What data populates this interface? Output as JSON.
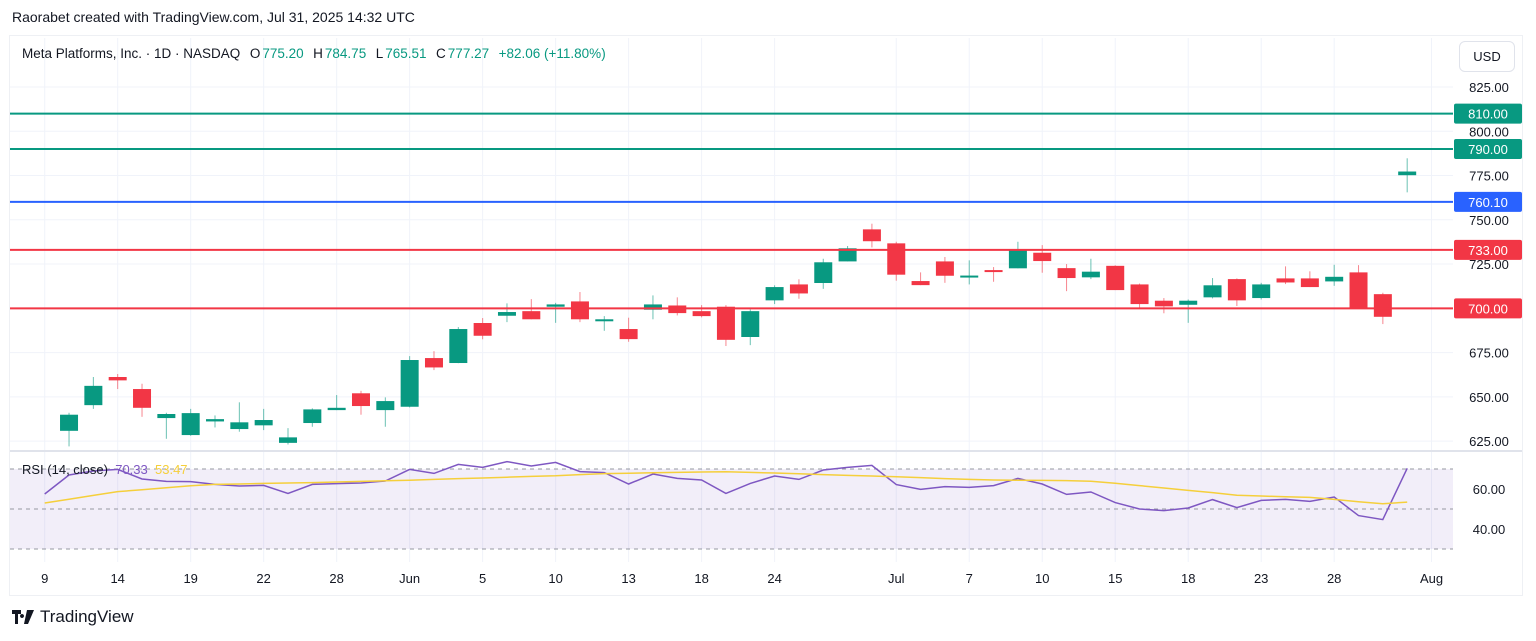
{
  "credit": "Raorabet created with TradingView.com, Jul 31, 2025 14:32 UTC",
  "legend": {
    "symbol": "Meta Platforms, Inc. · 1D · NASDAQ",
    "open_label": "O",
    "open": "775.20",
    "high_label": "H",
    "high": "784.75",
    "low_label": "L",
    "low": "765.51",
    "close_label": "C",
    "close": "777.27",
    "change": "+82.06 (+11.80%)"
  },
  "currency": "USD",
  "rsi_legend": {
    "name": "RSI (14, close)",
    "rsi": "70.33",
    "ma": "53.47"
  },
  "footer_brand": "TradingView",
  "colors": {
    "up": "#089981",
    "down": "#f23645",
    "support_resistance_green": "#089981",
    "blue_level": "#2962ff",
    "red_level": "#f23645",
    "rsi": "#7e57c2",
    "rsi_ma": "#f5cf3b",
    "rsi_band": "#7e57c2"
  },
  "chart_data": [
    {
      "type": "candlestick",
      "ylim": [
        619.4,
        852.7
      ],
      "grid": true,
      "price_ticks": [
        "625.00",
        "650.00",
        "675.00",
        "725.00",
        "750.00",
        "775.00",
        "800.00",
        "825.00"
      ],
      "levels": [
        {
          "value": 810.0,
          "label": "810.00",
          "color": "#089981"
        },
        {
          "value": 790.0,
          "label": "790.00",
          "color": "#089981"
        },
        {
          "value": 760.1,
          "label": "760.10",
          "color": "#2962ff"
        },
        {
          "value": 733.0,
          "label": "733.00",
          "color": "#f23645"
        },
        {
          "value": 700.0,
          "label": "700.00",
          "color": "#f23645"
        }
      ],
      "dates": [
        "2025-05-09",
        "2025-05-12",
        "2025-05-13",
        "2025-05-14",
        "2025-05-15",
        "2025-05-16",
        "2025-05-19",
        "2025-05-20",
        "2025-05-21",
        "2025-05-22",
        "2025-05-23",
        "2025-05-27",
        "2025-05-28",
        "2025-05-29",
        "2025-05-30",
        "2025-06-02",
        "2025-06-03",
        "2025-06-04",
        "2025-06-05",
        "2025-06-06",
        "2025-06-09",
        "2025-06-10",
        "2025-06-11",
        "2025-06-12",
        "2025-06-13",
        "2025-06-16",
        "2025-06-17",
        "2025-06-18",
        "2025-06-20",
        "2025-06-23",
        "2025-06-24",
        "2025-06-25",
        "2025-06-26",
        "2025-06-27",
        "2025-06-30",
        "2025-07-01",
        "2025-07-02",
        "2025-07-03",
        "2025-07-07",
        "2025-07-08",
        "2025-07-09",
        "2025-07-10",
        "2025-07-11",
        "2025-07-14",
        "2025-07-15",
        "2025-07-16",
        "2025-07-17",
        "2025-07-18",
        "2025-07-21",
        "2025-07-22",
        "2025-07-23",
        "2025-07-24",
        "2025-07-25",
        "2025-07-28",
        "2025-07-29",
        "2025-07-30",
        "2025-07-31"
      ],
      "candles": [
        {
          "date": "2025-05-12",
          "o": 630.8,
          "h": 641.0,
          "l": 622.0,
          "c": 639.9
        },
        {
          "date": "2025-05-13",
          "o": 645.3,
          "h": 661.2,
          "l": 643.2,
          "c": 656.2
        },
        {
          "date": "2025-05-14",
          "o": 661.2,
          "h": 662.9,
          "l": 654.4,
          "c": 659.3
        },
        {
          "date": "2025-05-15",
          "o": 654.4,
          "h": 657.4,
          "l": 638.7,
          "c": 643.8
        },
        {
          "date": "2025-05-16",
          "o": 638.0,
          "h": 641.0,
          "l": 626.3,
          "c": 640.3
        },
        {
          "date": "2025-05-19",
          "o": 628.4,
          "h": 643.2,
          "l": 628.0,
          "c": 640.8
        },
        {
          "date": "2025-05-20",
          "o": 636.1,
          "h": 639.5,
          "l": 632.7,
          "c": 637.4
        },
        {
          "date": "2025-05-21",
          "o": 631.8,
          "h": 646.9,
          "l": 630.3,
          "c": 635.6
        },
        {
          "date": "2025-05-22",
          "o": 633.9,
          "h": 643.2,
          "l": 631.2,
          "c": 636.9
        },
        {
          "date": "2025-05-23",
          "o": 624.0,
          "h": 632.3,
          "l": 623.1,
          "c": 627.1
        },
        {
          "date": "2025-05-27",
          "o": 635.2,
          "h": 643.5,
          "l": 633.1,
          "c": 642.9
        },
        {
          "date": "2025-05-28",
          "o": 642.5,
          "h": 651.0,
          "l": 642.5,
          "c": 643.8
        },
        {
          "date": "2025-05-29",
          "o": 652.0,
          "h": 653.4,
          "l": 639.9,
          "c": 644.8
        },
        {
          "date": "2025-05-30",
          "o": 642.5,
          "h": 649.7,
          "l": 633.1,
          "c": 647.6
        },
        {
          "date": "2025-06-02",
          "o": 644.4,
          "h": 673.0,
          "l": 644.0,
          "c": 670.8
        },
        {
          "date": "2025-06-03",
          "o": 671.9,
          "h": 675.8,
          "l": 665.1,
          "c": 666.6
        },
        {
          "date": "2025-06-04",
          "o": 669.1,
          "h": 689.4,
          "l": 669.0,
          "c": 688.3
        },
        {
          "date": "2025-06-05",
          "o": 691.7,
          "h": 694.5,
          "l": 682.5,
          "c": 684.5
        },
        {
          "date": "2025-06-06",
          "o": 695.8,
          "h": 702.8,
          "l": 692.2,
          "c": 697.9
        },
        {
          "date": "2025-06-09",
          "o": 698.4,
          "h": 705.2,
          "l": 693.8,
          "c": 693.8
        },
        {
          "date": "2025-06-10",
          "o": 700.9,
          "h": 703.1,
          "l": 691.8,
          "c": 702.2
        },
        {
          "date": "2025-06-11",
          "o": 703.9,
          "h": 709.2,
          "l": 692.2,
          "c": 693.8
        },
        {
          "date": "2025-06-12",
          "o": 693.2,
          "h": 695.6,
          "l": 687.3,
          "c": 693.8
        },
        {
          "date": "2025-06-13",
          "o": 688.3,
          "h": 694.7,
          "l": 681.1,
          "c": 682.6
        },
        {
          "date": "2025-06-16",
          "o": 699.2,
          "h": 707.3,
          "l": 693.8,
          "c": 702.2
        },
        {
          "date": "2025-06-17",
          "o": 701.6,
          "h": 706.2,
          "l": 696.0,
          "c": 697.3
        },
        {
          "date": "2025-06-18",
          "o": 698.4,
          "h": 701.8,
          "l": 694.9,
          "c": 695.6
        },
        {
          "date": "2025-06-20",
          "o": 700.9,
          "h": 701.8,
          "l": 678.7,
          "c": 682.2
        },
        {
          "date": "2025-06-23",
          "o": 683.8,
          "h": 699.4,
          "l": 679.2,
          "c": 698.4
        },
        {
          "date": "2025-06-24",
          "o": 704.5,
          "h": 713.0,
          "l": 702.4,
          "c": 712.0
        },
        {
          "date": "2025-06-25",
          "o": 713.5,
          "h": 716.4,
          "l": 705.4,
          "c": 708.4
        },
        {
          "date": "2025-06-26",
          "o": 714.3,
          "h": 728.0,
          "l": 711.0,
          "c": 726.0
        },
        {
          "date": "2025-06-27",
          "o": 726.5,
          "h": 735.2,
          "l": 726.5,
          "c": 733.9
        },
        {
          "date": "2025-06-30",
          "o": 744.6,
          "h": 747.8,
          "l": 734.4,
          "c": 737.9
        },
        {
          "date": "2025-07-01",
          "o": 736.7,
          "h": 737.6,
          "l": 715.6,
          "c": 719.0
        },
        {
          "date": "2025-07-02",
          "o": 715.4,
          "h": 720.3,
          "l": 713.1,
          "c": 713.1
        },
        {
          "date": "2025-07-03",
          "o": 726.5,
          "h": 729.0,
          "l": 714.4,
          "c": 718.4
        },
        {
          "date": "2025-07-07",
          "o": 717.9,
          "h": 727.1,
          "l": 713.5,
          "c": 718.5
        },
        {
          "date": "2025-07-08",
          "o": 721.6,
          "h": 723.3,
          "l": 715.0,
          "c": 720.5
        },
        {
          "date": "2025-07-09",
          "o": 722.6,
          "h": 737.6,
          "l": 722.6,
          "c": 732.9
        },
        {
          "date": "2025-07-10",
          "o": 731.4,
          "h": 735.7,
          "l": 720.1,
          "c": 726.7
        },
        {
          "date": "2025-07-11",
          "o": 722.7,
          "h": 725.0,
          "l": 709.7,
          "c": 717.1
        },
        {
          "date": "2025-07-14",
          "o": 717.5,
          "h": 728.0,
          "l": 716.5,
          "c": 720.7
        },
        {
          "date": "2025-07-15",
          "o": 724.0,
          "h": 724.3,
          "l": 710.3,
          "c": 710.3
        },
        {
          "date": "2025-07-16",
          "o": 713.5,
          "h": 714.0,
          "l": 700.0,
          "c": 702.4
        },
        {
          "date": "2025-07-17",
          "o": 704.3,
          "h": 705.8,
          "l": 697.2,
          "c": 701.1
        },
        {
          "date": "2025-07-18",
          "o": 702.0,
          "h": 705.0,
          "l": 691.8,
          "c": 704.3
        },
        {
          "date": "2025-07-21",
          "o": 706.2,
          "h": 717.1,
          "l": 705.6,
          "c": 713.0
        },
        {
          "date": "2025-07-22",
          "o": 716.5,
          "h": 716.9,
          "l": 701.3,
          "c": 704.5
        },
        {
          "date": "2025-07-23",
          "o": 705.8,
          "h": 714.4,
          "l": 705.0,
          "c": 713.5
        },
        {
          "date": "2025-07-24",
          "o": 716.9,
          "h": 723.7,
          "l": 713.7,
          "c": 714.6
        },
        {
          "date": "2025-07-25",
          "o": 716.9,
          "h": 720.9,
          "l": 712.0,
          "c": 712.0
        },
        {
          "date": "2025-07-28",
          "o": 715.2,
          "h": 724.6,
          "l": 712.7,
          "c": 717.8
        },
        {
          "date": "2025-07-29",
          "o": 720.3,
          "h": 724.4,
          "l": 699.6,
          "c": 699.6
        },
        {
          "date": "2025-07-30",
          "o": 708.0,
          "h": 708.8,
          "l": 691.1,
          "c": 695.21
        },
        {
          "date": "2025-07-31",
          "o": 775.2,
          "h": 784.75,
          "l": 765.51,
          "c": 777.27
        }
      ],
      "x_ticks": [
        {
          "label": "9",
          "date": "2025-05-09"
        },
        {
          "label": "14",
          "date": "2025-05-14"
        },
        {
          "label": "19",
          "date": "2025-05-19"
        },
        {
          "label": "22",
          "date": "2025-05-22"
        },
        {
          "label": "28",
          "date": "2025-05-28"
        },
        {
          "label": "Jun",
          "date": "2025-06-02"
        },
        {
          "label": "5",
          "date": "2025-06-05"
        },
        {
          "label": "10",
          "date": "2025-06-10"
        },
        {
          "label": "13",
          "date": "2025-06-13"
        },
        {
          "label": "18",
          "date": "2025-06-18"
        },
        {
          "label": "24",
          "date": "2025-06-24"
        },
        {
          "label": "Jul",
          "date": "2025-07-01"
        },
        {
          "label": "7",
          "date": "2025-07-07"
        },
        {
          "label": "10",
          "date": "2025-07-10"
        },
        {
          "label": "15",
          "date": "2025-07-15"
        },
        {
          "label": "18",
          "date": "2025-07-18"
        },
        {
          "label": "23",
          "date": "2025-07-23"
        },
        {
          "label": "28",
          "date": "2025-07-28"
        },
        {
          "label": "Aug",
          "date": "2025-08-01"
        }
      ]
    },
    {
      "type": "line",
      "ylim": [
        23.5,
        79
      ],
      "band": [
        30,
        70
      ],
      "mid_line": 50,
      "y_ticks": [
        {
          "value": 60,
          "label": "60.00"
        },
        {
          "value": 40,
          "label": "40.00"
        }
      ],
      "series": [
        {
          "name": "RSI",
          "values": [
            57.5,
            67,
            69,
            69.8,
            65,
            63.8,
            63.7,
            62.3,
            61.5,
            61.8,
            57.8,
            62.3,
            62.7,
            63,
            64,
            69.8,
            67.8,
            72.3,
            70.8,
            73.7,
            71.5,
            73.3,
            68.7,
            68.2,
            62.5,
            67.5,
            65.3,
            64.5,
            57.8,
            62.8,
            66.5,
            64.8,
            69.5,
            70.8,
            71.8,
            62.2,
            59.8,
            61.2,
            60.8,
            61.7,
            65.3,
            62.5,
            57.3,
            58.5,
            53.2,
            50,
            49.2,
            50.5,
            54.7,
            50.7,
            54.3,
            54.8,
            53.8,
            56,
            46.7,
            44.7,
            70.33
          ]
        },
        {
          "name": "RSI MA",
          "values": [
            53.0,
            54.9,
            56.8,
            58.7,
            59.6,
            60.6,
            61.6,
            62.3,
            62.5,
            62.8,
            63.0,
            63.2,
            63.5,
            63.8,
            64.1,
            64.4,
            64.8,
            65.2,
            65.5,
            65.9,
            66.3,
            66.6,
            67.2,
            67.7,
            67.9,
            68.1,
            68.3,
            68.5,
            68.6,
            68.3,
            68.0,
            67.6,
            67.2,
            66.8,
            66.5,
            66.1,
            65.7,
            65.2,
            64.8,
            64.5,
            64.4,
            64.3,
            64.2,
            63.9,
            62.9,
            61.7,
            60.5,
            59.3,
            58.2,
            56.9,
            56.5,
            56.1,
            55.8,
            54.8,
            53.6,
            52.6,
            53.47
          ]
        }
      ]
    }
  ]
}
